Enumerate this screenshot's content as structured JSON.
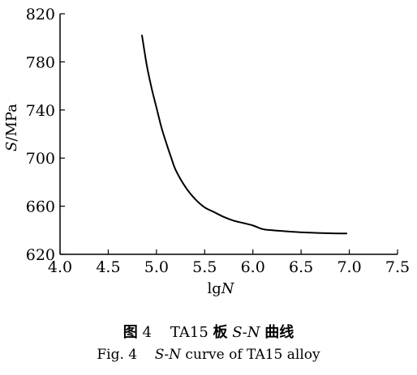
{
  "chart_data": {
    "type": "line",
    "xlabel_prefix": "lg",
    "xlabel_var": "N",
    "ylabel_var": "S",
    "ylabel_unit": "/MPa",
    "xlim": [
      4.0,
      7.5
    ],
    "ylim": [
      620,
      820
    ],
    "xticks": [
      4.0,
      4.5,
      5.0,
      5.5,
      6.0,
      6.5,
      7.0,
      7.5
    ],
    "xtick_labels": [
      "4.0",
      "4.5",
      "5.0",
      "5.5",
      "6.0",
      "6.5",
      "7.0",
      "7.5"
    ],
    "yticks": [
      620,
      660,
      700,
      740,
      780,
      820
    ],
    "ytick_labels": [
      "620",
      "660",
      "700",
      "740",
      "780",
      "820"
    ],
    "grid": false,
    "series": [
      {
        "x": [
          4.85,
          4.9,
          4.95,
          5.0,
          5.05,
          5.1,
          5.15,
          5.2,
          5.3,
          5.4,
          5.5,
          5.6,
          5.7,
          5.8,
          5.9,
          6.0,
          6.1,
          6.2,
          6.4,
          6.6,
          6.8,
          6.97
        ],
        "y": [
          802,
          777,
          758,
          742,
          726,
          713,
          701,
          690,
          676,
          666,
          659,
          655,
          651,
          648,
          646,
          644,
          641,
          640,
          638.8,
          638,
          637.5,
          637.3
        ]
      }
    ]
  },
  "caption_cn": {
    "fig_label": "图",
    "fig_num": "4",
    "alloy": "TA15",
    "plate": "板",
    "curve_var_s": "S",
    "dash": "-",
    "curve_var_n": "N",
    "curve_word": "曲线"
  },
  "caption_en": {
    "fig_label": "Fig. 4",
    "var_s": "S",
    "dash": "-",
    "var_n": "N",
    "rest": " curve of TA15 alloy"
  },
  "colors": {
    "line": "#000000",
    "axis": "#000000",
    "background": "#ffffff"
  }
}
